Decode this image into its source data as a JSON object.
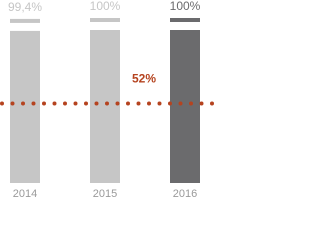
{
  "chart_data": {
    "type": "bar",
    "categories": [
      "2014",
      "2015",
      "2016"
    ],
    "values": [
      99.4,
      100,
      100
    ],
    "value_labels": [
      "99,4%",
      "100%",
      "100%"
    ],
    "colors": [
      "#c6c6c6",
      "#c6c6c6",
      "#6b6b6d"
    ],
    "ylim": [
      0,
      100
    ],
    "reference": {
      "value": 52,
      "label": "52%",
      "color": "#b5431f"
    }
  }
}
